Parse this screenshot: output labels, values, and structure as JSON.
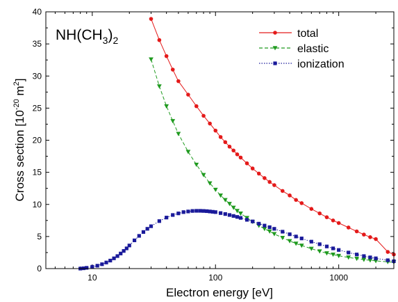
{
  "chart_data": {
    "type": "line",
    "annotation": {
      "base": "NH(CH",
      "sub1": "3",
      "mid": ")",
      "sub2": "2"
    },
    "xlabel": "Electron energy [eV]",
    "ylabel": {
      "main": "Cross section [10",
      "exp1": "-20",
      "mid": " m",
      "exp2": "2",
      "close": "]"
    },
    "x_scale": "log",
    "xlim": [
      4.2,
      2800
    ],
    "ylim": [
      0,
      40
    ],
    "x_ticks": [
      {
        "value": 10,
        "label": "10"
      },
      {
        "value": 100,
        "label": "100"
      },
      {
        "value": 1000,
        "label": "1000"
      }
    ],
    "y_ticks": [
      {
        "value": 0,
        "label": "0"
      },
      {
        "value": 5,
        "label": "5"
      },
      {
        "value": 10,
        "label": "10"
      },
      {
        "value": 15,
        "label": "15"
      },
      {
        "value": 20,
        "label": "20"
      },
      {
        "value": 25,
        "label": "25"
      },
      {
        "value": 30,
        "label": "30"
      },
      {
        "value": 35,
        "label": "35"
      },
      {
        "value": 40,
        "label": "40"
      }
    ],
    "grid": false,
    "legend_position": "top-right",
    "series": [
      {
        "name": "total",
        "color": "#e41a1a",
        "marker": "circle",
        "line": "solid",
        "points": [
          [
            30,
            38.9
          ],
          [
            35,
            35.6
          ],
          [
            40,
            33.1
          ],
          [
            45,
            31.0
          ],
          [
            50,
            29.2
          ],
          [
            60,
            27.1
          ],
          [
            70,
            25.3
          ],
          [
            80,
            23.8
          ],
          [
            90,
            22.6
          ],
          [
            100,
            21.5
          ],
          [
            110,
            20.5
          ],
          [
            120,
            19.7
          ],
          [
            130,
            19.0
          ],
          [
            140,
            18.4
          ],
          [
            150,
            17.8
          ],
          [
            160,
            17.3
          ],
          [
            180,
            16.4
          ],
          [
            200,
            15.6
          ],
          [
            225,
            14.8
          ],
          [
            250,
            14.1
          ],
          [
            275,
            13.5
          ],
          [
            300,
            13.0
          ],
          [
            350,
            12.1
          ],
          [
            400,
            11.4
          ],
          [
            450,
            10.7
          ],
          [
            500,
            10.2
          ],
          [
            600,
            9.3
          ],
          [
            700,
            8.6
          ],
          [
            800,
            8.0
          ],
          [
            900,
            7.5
          ],
          [
            1000,
            7.1
          ],
          [
            1200,
            6.4
          ],
          [
            1400,
            5.8
          ],
          [
            1600,
            5.3
          ],
          [
            1800,
            4.9
          ],
          [
            2000,
            4.6
          ],
          [
            2500,
            2.6
          ],
          [
            2800,
            2.2
          ]
        ]
      },
      {
        "name": "elastic",
        "color": "#1f9a1f",
        "marker": "triangle-down",
        "line": "dashed",
        "points": [
          [
            30,
            32.6
          ],
          [
            35,
            28.4
          ],
          [
            40,
            25.3
          ],
          [
            45,
            23.0
          ],
          [
            50,
            21.0
          ],
          [
            60,
            18.2
          ],
          [
            70,
            16.2
          ],
          [
            80,
            14.6
          ],
          [
            90,
            13.3
          ],
          [
            100,
            12.3
          ],
          [
            110,
            11.4
          ],
          [
            120,
            10.7
          ],
          [
            130,
            10.1
          ],
          [
            140,
            9.5
          ],
          [
            150,
            9.0
          ],
          [
            160,
            8.6
          ],
          [
            180,
            7.9
          ],
          [
            200,
            7.3
          ],
          [
            225,
            6.7
          ],
          [
            250,
            6.2
          ],
          [
            275,
            5.8
          ],
          [
            300,
            5.4
          ],
          [
            350,
            4.8
          ],
          [
            400,
            4.3
          ],
          [
            450,
            3.9
          ],
          [
            500,
            3.6
          ],
          [
            600,
            3.1
          ],
          [
            700,
            2.7
          ],
          [
            800,
            2.4
          ],
          [
            900,
            2.2
          ],
          [
            1000,
            2.0
          ],
          [
            1200,
            1.75
          ],
          [
            1400,
            1.55
          ],
          [
            1600,
            1.4
          ],
          [
            1800,
            1.3
          ],
          [
            2000,
            1.2
          ],
          [
            2500,
            1.05
          ],
          [
            2800,
            1.0
          ]
        ]
      },
      {
        "name": "ionization",
        "color": "#1a1a9a",
        "marker": "square",
        "line": "dotted",
        "points": [
          [
            8,
            0.0
          ],
          [
            8.5,
            0.05
          ],
          [
            9,
            0.12
          ],
          [
            10,
            0.28
          ],
          [
            11,
            0.45
          ],
          [
            12,
            0.68
          ],
          [
            13,
            0.95
          ],
          [
            14,
            1.25
          ],
          [
            15,
            1.6
          ],
          [
            16,
            1.95
          ],
          [
            17,
            2.35
          ],
          [
            18,
            2.75
          ],
          [
            19,
            3.15
          ],
          [
            20,
            3.6
          ],
          [
            22,
            4.4
          ],
          [
            24,
            5.1
          ],
          [
            26,
            5.7
          ],
          [
            28,
            6.2
          ],
          [
            30,
            6.6
          ],
          [
            35,
            7.4
          ],
          [
            40,
            7.95
          ],
          [
            45,
            8.35
          ],
          [
            50,
            8.6
          ],
          [
            55,
            8.8
          ],
          [
            60,
            8.9
          ],
          [
            65,
            8.98
          ],
          [
            70,
            9.0
          ],
          [
            75,
            9.0
          ],
          [
            80,
            8.98
          ],
          [
            85,
            8.95
          ],
          [
            90,
            8.9
          ],
          [
            95,
            8.85
          ],
          [
            100,
            8.8
          ],
          [
            110,
            8.65
          ],
          [
            120,
            8.5
          ],
          [
            130,
            8.35
          ],
          [
            140,
            8.2
          ],
          [
            150,
            8.05
          ],
          [
            160,
            7.9
          ],
          [
            180,
            7.6
          ],
          [
            200,
            7.35
          ],
          [
            225,
            7.0
          ],
          [
            250,
            6.7
          ],
          [
            275,
            6.45
          ],
          [
            300,
            6.2
          ],
          [
            350,
            5.75
          ],
          [
            400,
            5.35
          ],
          [
            450,
            5.0
          ],
          [
            500,
            4.7
          ],
          [
            600,
            4.2
          ],
          [
            700,
            3.8
          ],
          [
            800,
            3.45
          ],
          [
            900,
            3.15
          ],
          [
            1000,
            2.9
          ],
          [
            1200,
            2.5
          ],
          [
            1400,
            2.2
          ],
          [
            1600,
            1.95
          ],
          [
            1800,
            1.75
          ],
          [
            2000,
            1.6
          ],
          [
            2500,
            1.3
          ],
          [
            2800,
            1.15
          ]
        ]
      }
    ]
  }
}
